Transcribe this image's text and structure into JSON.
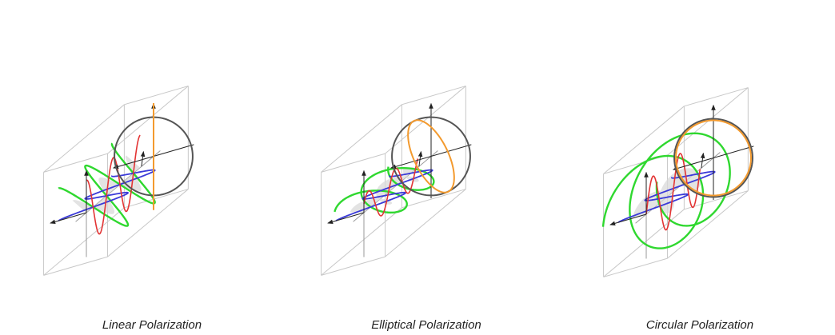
{
  "figure": {
    "panels": [
      {
        "id": "linear",
        "caption": "Linear Polarization",
        "ax": 1.0,
        "ay": 1.0,
        "phase_deg": 0,
        "green_scale": 1.0
      },
      {
        "id": "elliptical",
        "caption": "Elliptical Polarization",
        "ax": 1.0,
        "ay": 0.55,
        "phase_deg": 60,
        "green_scale": 1.05
      },
      {
        "id": "circular",
        "caption": "Circular Polarization",
        "ax": 1.0,
        "ay": 1.0,
        "phase_deg": 90,
        "green_scale": 1.55
      }
    ],
    "colors": {
      "box": "#c8c8c8",
      "axis": "#222222",
      "x_component": "#3a3ad8",
      "y_component": "#e33434",
      "resultant": "#2fd82f",
      "ellipse": "#f39a2e",
      "unit_circle": "#555555",
      "fill": "#d9d9d9"
    }
  }
}
